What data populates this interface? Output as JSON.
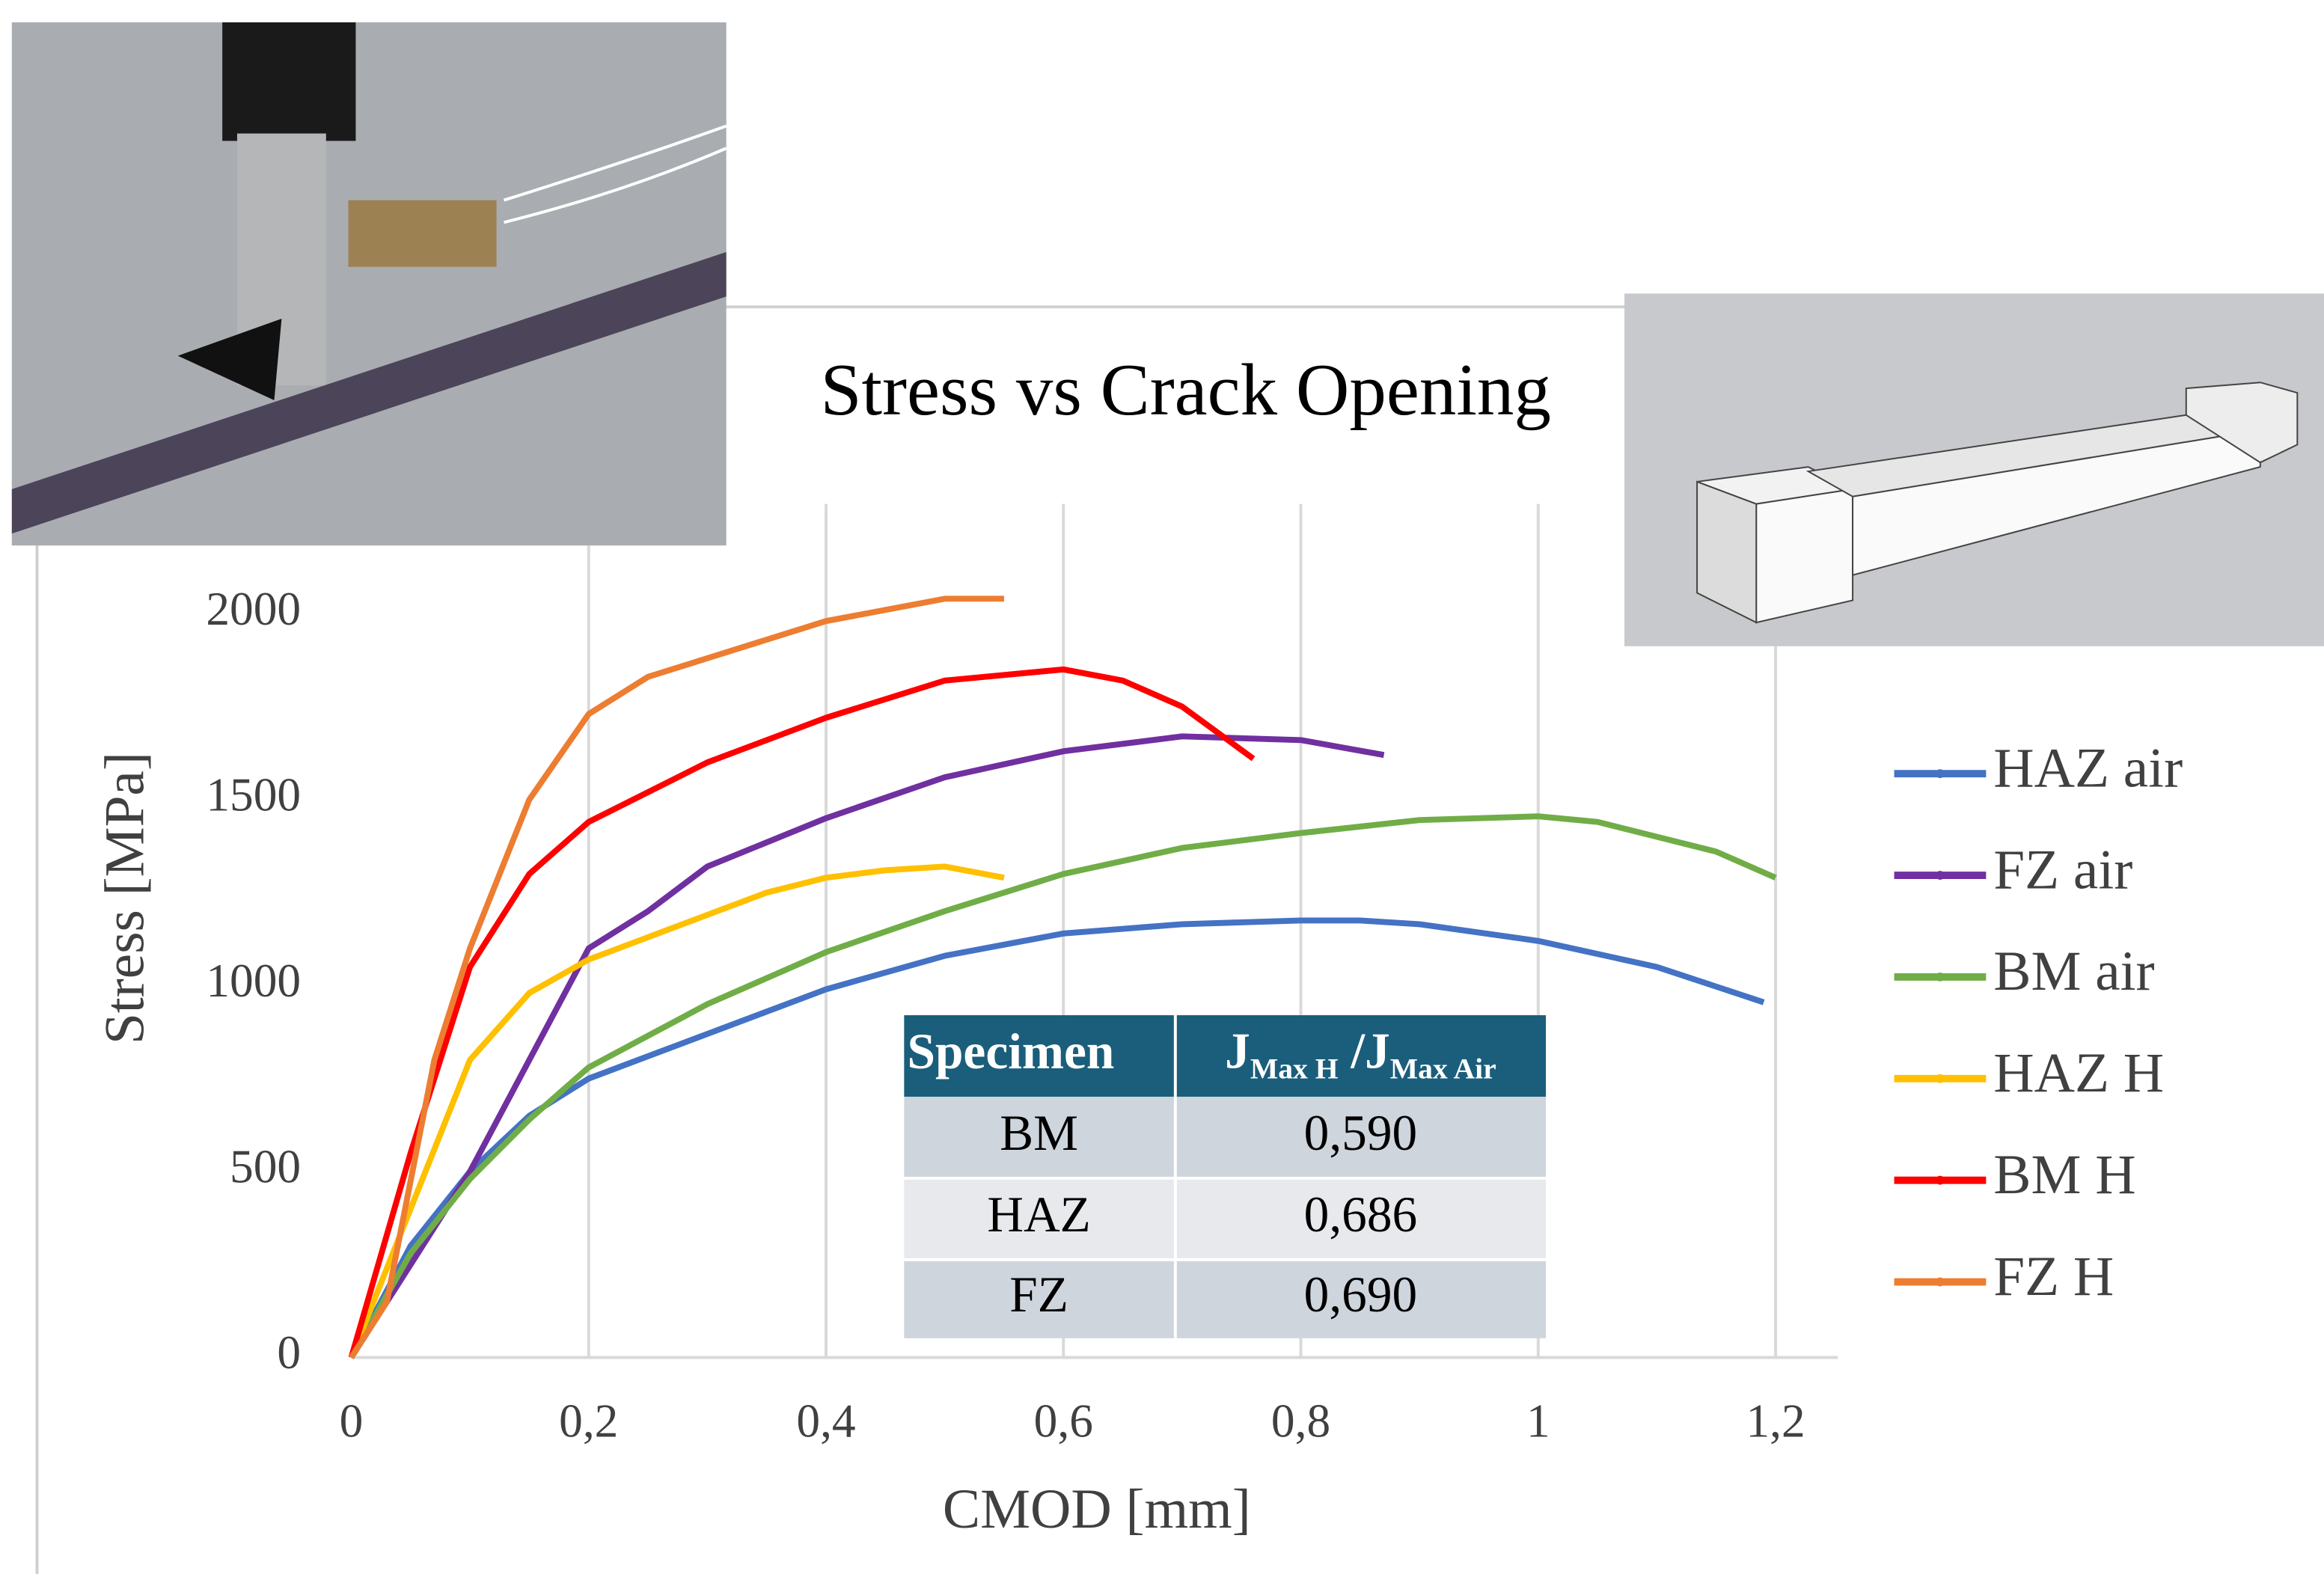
{
  "chart_data": {
    "type": "line",
    "title": "Stress vs Crack Opening",
    "x_label": "CMOD [mm]",
    "y_label": "Stress [MPa]",
    "xlim": [
      0,
      1.2
    ],
    "ylim": [
      0,
      2000
    ],
    "xticks": [
      0,
      {
        "value": 0.2,
        "label": "0,2"
      },
      {
        "value": 0.4,
        "label": "0,4"
      },
      {
        "value": 0.6,
        "label": "0,6"
      },
      {
        "value": 0.8,
        "label": "0,8"
      },
      1,
      {
        "value": 1.2,
        "label": "1,2"
      }
    ],
    "yticks": [
      0,
      500,
      1000,
      1500,
      2000
    ],
    "grid": "x",
    "legend": "right",
    "series": [
      {
        "name": "HAZ air",
        "color": "#4472c4",
        "x": [
          0,
          0.05,
          0.1,
          0.15,
          0.2,
          0.3,
          0.4,
          0.5,
          0.6,
          0.7,
          0.8,
          0.85,
          0.9,
          1.0,
          1.1,
          1.19
        ],
        "values": [
          0,
          300,
          500,
          650,
          750,
          870,
          990,
          1080,
          1140,
          1165,
          1175,
          1175,
          1165,
          1120,
          1050,
          955
        ]
      },
      {
        "name": "FZ air",
        "color": "#7030a0",
        "x": [
          0,
          0.05,
          0.1,
          0.15,
          0.2,
          0.25,
          0.3,
          0.4,
          0.5,
          0.6,
          0.7,
          0.8,
          0.87
        ],
        "values": [
          0,
          250,
          500,
          800,
          1100,
          1200,
          1320,
          1450,
          1560,
          1630,
          1670,
          1660,
          1620
        ]
      },
      {
        "name": "BM air",
        "color": "#70ad47",
        "x": [
          0,
          0.05,
          0.1,
          0.15,
          0.2,
          0.3,
          0.4,
          0.5,
          0.6,
          0.7,
          0.8,
          0.9,
          1.0,
          1.05,
          1.1,
          1.15,
          1.2
        ],
        "values": [
          0,
          280,
          480,
          640,
          780,
          950,
          1090,
          1200,
          1300,
          1370,
          1410,
          1445,
          1455,
          1440,
          1400,
          1360,
          1290
        ]
      },
      {
        "name": "HAZ H",
        "color": "#ffc000",
        "x": [
          0,
          0.05,
          0.1,
          0.15,
          0.2,
          0.25,
          0.3,
          0.35,
          0.4,
          0.45,
          0.5,
          0.55
        ],
        "values": [
          0,
          400,
          800,
          980,
          1070,
          1130,
          1190,
          1250,
          1290,
          1310,
          1320,
          1290
        ]
      },
      {
        "name": "BM H",
        "color": "#ff0000",
        "x": [
          0,
          0.05,
          0.1,
          0.15,
          0.2,
          0.3,
          0.4,
          0.5,
          0.6,
          0.65,
          0.7,
          0.76
        ],
        "values": [
          0,
          550,
          1050,
          1300,
          1440,
          1600,
          1720,
          1820,
          1850,
          1820,
          1750,
          1610
        ]
      },
      {
        "name": "FZ H",
        "color": "#ed7d31",
        "x": [
          0,
          0.03,
          0.07,
          0.1,
          0.15,
          0.2,
          0.25,
          0.3,
          0.4,
          0.5,
          0.55
        ],
        "values": [
          0,
          150,
          800,
          1100,
          1500,
          1730,
          1830,
          1880,
          1980,
          2040,
          2040
        ]
      }
    ]
  },
  "table": {
    "header": {
      "col1": "Specimen",
      "j": "J",
      "sub1": "Max H",
      "mid": " /J",
      "sub2": "Max Air"
    },
    "rows": [
      [
        "BM",
        "0,590"
      ],
      [
        "HAZ",
        "0,686"
      ],
      [
        "FZ",
        "0,690"
      ]
    ]
  }
}
